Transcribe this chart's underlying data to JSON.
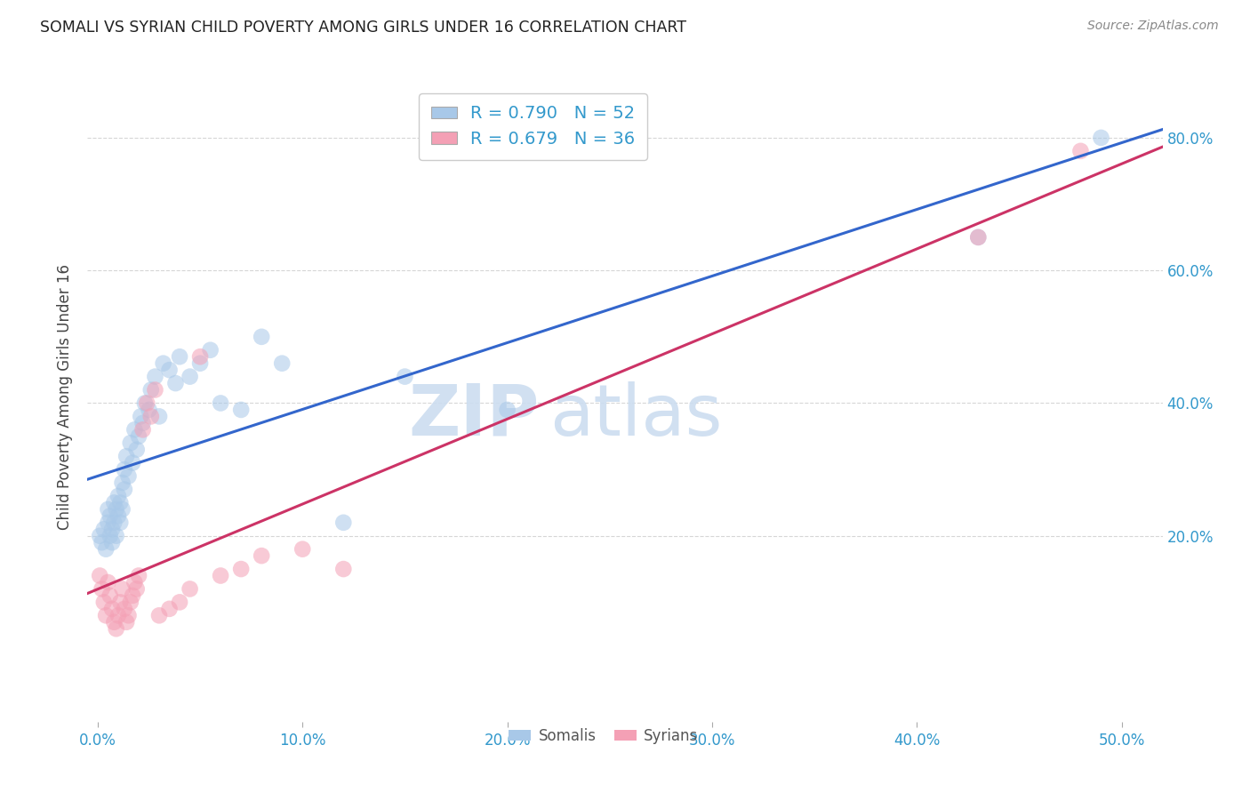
{
  "title": "SOMALI VS SYRIAN CHILD POVERTY AMONG GIRLS UNDER 16 CORRELATION CHART",
  "source": "Source: ZipAtlas.com",
  "ylabel": "Child Poverty Among Girls Under 16",
  "xlabel_ticks": [
    "0.0%",
    "10.0%",
    "20.0%",
    "30.0%",
    "40.0%",
    "50.0%"
  ],
  "xlabel_vals": [
    0.0,
    0.1,
    0.2,
    0.3,
    0.4,
    0.5
  ],
  "ylabel_ticks": [
    "20.0%",
    "40.0%",
    "60.0%",
    "80.0%"
  ],
  "ylabel_vals": [
    0.2,
    0.4,
    0.6,
    0.8
  ],
  "xlim": [
    -0.005,
    0.52
  ],
  "ylim": [
    -0.08,
    0.9
  ],
  "somali_color": "#a8c8e8",
  "syrian_color": "#f4a0b5",
  "somali_line_color": "#3366cc",
  "syrian_line_color": "#cc3366",
  "legend_r_somali": "R = 0.790",
  "legend_n_somali": "N = 52",
  "legend_r_syrian": "R = 0.679",
  "legend_n_syrian": "N = 36",
  "watermark_zip": "ZIP",
  "watermark_atlas": "atlas",
  "somali_x": [
    0.001,
    0.002,
    0.003,
    0.004,
    0.005,
    0.005,
    0.006,
    0.006,
    0.007,
    0.007,
    0.008,
    0.008,
    0.009,
    0.009,
    0.01,
    0.01,
    0.011,
    0.011,
    0.012,
    0.012,
    0.013,
    0.013,
    0.014,
    0.015,
    0.016,
    0.017,
    0.018,
    0.019,
    0.02,
    0.021,
    0.022,
    0.023,
    0.025,
    0.026,
    0.028,
    0.03,
    0.032,
    0.035,
    0.038,
    0.04,
    0.045,
    0.05,
    0.055,
    0.06,
    0.07,
    0.08,
    0.09,
    0.12,
    0.15,
    0.2,
    0.43,
    0.49
  ],
  "somali_y": [
    0.2,
    0.19,
    0.21,
    0.18,
    0.22,
    0.24,
    0.2,
    0.23,
    0.21,
    0.19,
    0.25,
    0.22,
    0.24,
    0.2,
    0.23,
    0.26,
    0.25,
    0.22,
    0.28,
    0.24,
    0.3,
    0.27,
    0.32,
    0.29,
    0.34,
    0.31,
    0.36,
    0.33,
    0.35,
    0.38,
    0.37,
    0.4,
    0.39,
    0.42,
    0.44,
    0.38,
    0.46,
    0.45,
    0.43,
    0.47,
    0.44,
    0.46,
    0.48,
    0.4,
    0.39,
    0.5,
    0.46,
    0.22,
    0.44,
    0.39,
    0.65,
    0.8
  ],
  "syrian_x": [
    0.001,
    0.002,
    0.003,
    0.004,
    0.005,
    0.006,
    0.007,
    0.008,
    0.009,
    0.01,
    0.011,
    0.012,
    0.013,
    0.014,
    0.015,
    0.016,
    0.017,
    0.018,
    0.019,
    0.02,
    0.022,
    0.024,
    0.026,
    0.028,
    0.03,
    0.035,
    0.04,
    0.045,
    0.05,
    0.06,
    0.07,
    0.08,
    0.1,
    0.12,
    0.43,
    0.48
  ],
  "syrian_y": [
    0.14,
    0.12,
    0.1,
    0.08,
    0.13,
    0.11,
    0.09,
    0.07,
    0.06,
    0.08,
    0.1,
    0.12,
    0.09,
    0.07,
    0.08,
    0.1,
    0.11,
    0.13,
    0.12,
    0.14,
    0.36,
    0.4,
    0.38,
    0.42,
    0.08,
    0.09,
    0.1,
    0.12,
    0.47,
    0.14,
    0.15,
    0.17,
    0.18,
    0.15,
    0.65,
    0.78
  ],
  "grid_color": "#cccccc",
  "title_color": "#222222",
  "axis_color": "#3399cc",
  "tick_color": "#3399cc",
  "background_color": "#ffffff"
}
